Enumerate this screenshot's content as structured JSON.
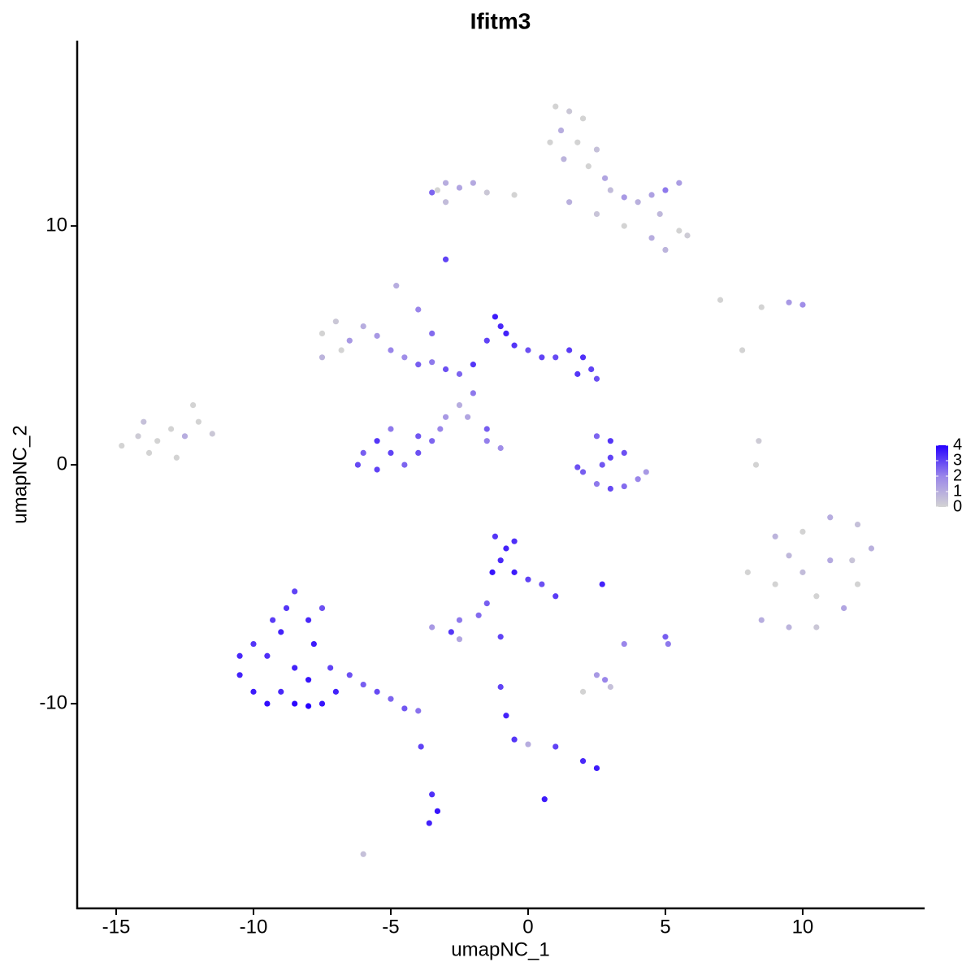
{
  "chart_data": {
    "type": "scatter",
    "title": "Ifitm3",
    "x_label": "umapNC_1",
    "y_label": "umapNC_2",
    "xlim": [
      -16.42,
      14.44
    ],
    "ylim": [
      -18.57,
      17.76
    ],
    "xticks": [
      -15,
      -10,
      -5,
      0,
      5,
      10
    ],
    "yticks": [
      -10,
      0,
      10
    ],
    "clim": [
      0,
      4
    ],
    "cticks": [
      0,
      1,
      2,
      3,
      4
    ],
    "colors": [
      "#d3d3d3",
      "#9a86ea",
      "#2600ff"
    ],
    "x": [
      1,
      1.5,
      2,
      1.2,
      1.8,
      2.5,
      0.8,
      1.3,
      2.2,
      2.8,
      3,
      3.5,
      4,
      4.5,
      5,
      5.5,
      4.8,
      5.5,
      5.8,
      4.5,
      5,
      3.5,
      2.5,
      1.5,
      -0.5,
      -1.5,
      -2.5,
      -3,
      -3.3,
      -3,
      -3.5,
      -2,
      -3,
      -1.2,
      -1,
      -0.8,
      -1.5,
      -0.5,
      0,
      0.5,
      1,
      1.5,
      2,
      2.3,
      2.5,
      1.8,
      -2,
      -2.5,
      -3,
      -3.5,
      -4,
      -4.5,
      -5,
      -5.5,
      -6,
      -7.5,
      -7,
      -7.5,
      -6.8,
      -6.5,
      -4.8,
      -4,
      -3.5,
      -2,
      -2.5,
      -3,
      -3.2,
      -3.5,
      -4,
      -5,
      -5.5,
      -6,
      -6.2,
      -5.5,
      -4.5,
      -4,
      -5,
      -1.5,
      -1,
      -1.5,
      -2.2,
      -14.8,
      -14.2,
      -13.5,
      -13,
      -12.5,
      -12,
      -11.5,
      -12.2,
      -13.8,
      -12.8,
      -14,
      2.5,
      3,
      3.5,
      2,
      2.5,
      3,
      3.5,
      4,
      4.3,
      3,
      2.7,
      1.8,
      9,
      10,
      11,
      12,
      12.5,
      12,
      11.5,
      10.5,
      9.5,
      8.5,
      9,
      10,
      11,
      10.5,
      8,
      9.5,
      11.8,
      8.3,
      8.4,
      7.8,
      7,
      8.5,
      9.5,
      10,
      -10.5,
      -10,
      -9.5,
      -9,
      -8.5,
      -8,
      -7.5,
      -9.5,
      -9,
      -8.8,
      -8.5,
      -8,
      -7.5,
      -7.8,
      -8.5,
      -10,
      -9.3,
      -7.2,
      -6.5,
      -6,
      -5.5,
      -5,
      -4.5,
      -4,
      -10.5,
      -8,
      -7,
      -1.2,
      -0.8,
      -1,
      -0.5,
      0,
      0.5,
      1,
      -1.3,
      -0.5,
      -1.5,
      -1.8,
      -2.5,
      -3.5,
      -2.8,
      -2.5,
      -1,
      2.7,
      3.5,
      5,
      5.1,
      2.5,
      2,
      3,
      2.8,
      -1,
      -0.8,
      -0.5,
      0,
      1,
      2,
      2.5,
      -3.9,
      -3.5,
      -3.3,
      -3.6,
      0.6,
      -6
    ],
    "y": [
      15,
      14.8,
      14.5,
      14,
      13.5,
      13.2,
      13.5,
      12.8,
      12.5,
      12,
      11.5,
      11.2,
      11,
      11.3,
      11.5,
      11.8,
      10.5,
      9.8,
      9.6,
      9.5,
      9,
      10,
      10.5,
      11,
      11.3,
      11.4,
      11.6,
      11.8,
      11.5,
      11,
      11.4,
      11.8,
      8.6,
      6.2,
      5.8,
      5.5,
      5.2,
      5,
      4.8,
      4.5,
      4.5,
      4.8,
      4.5,
      4,
      3.6,
      3.8,
      4.2,
      3.8,
      4,
      4.3,
      4.2,
      4.5,
      4.8,
      5.4,
      5.8,
      5.5,
      6,
      4.5,
      4.8,
      5.2,
      7.5,
      6.5,
      5.5,
      3,
      2.5,
      2,
      1.5,
      1,
      0.5,
      0.5,
      1,
      0.5,
      0,
      -0.2,
      0,
      1.2,
      1.5,
      1,
      0.7,
      1.5,
      2,
      0.8,
      1.2,
      1,
      1.5,
      1.2,
      1.8,
      1.3,
      2.5,
      0.5,
      0.3,
      1.8,
      1.2,
      1,
      0.5,
      -0.3,
      -0.8,
      -1,
      -0.9,
      -0.6,
      -0.3,
      0.3,
      0,
      -0.1,
      -3,
      -2.8,
      -2.2,
      -2.5,
      -3.5,
      -5,
      -6,
      -6.8,
      -6.8,
      -6.5,
      -5,
      -4.5,
      -4,
      -5.5,
      -4.5,
      -3.8,
      -4,
      0,
      1,
      4.8,
      6.9,
      6.6,
      6.8,
      6.7,
      -8.8,
      -9.5,
      -10,
      -9.5,
      -10,
      -10.1,
      -10,
      -8,
      -7,
      -6,
      -5.3,
      -6.5,
      -6,
      -7.5,
      -8.5,
      -7.5,
      -6.5,
      -8.5,
      -8.8,
      -9.2,
      -9.5,
      -9.8,
      -10.2,
      -10.3,
      -8,
      -9,
      -9.5,
      -3,
      -3.5,
      -4,
      -4.5,
      -4.8,
      -5,
      -5.5,
      -4.5,
      -3.2,
      -5.8,
      -6.3,
      -6.5,
      -6.8,
      -7,
      -7.3,
      -7.2,
      -5,
      -7.5,
      -7.2,
      -7.5,
      -8.8,
      -9.5,
      -9.3,
      -9,
      -9.3,
      -10.5,
      -11.5,
      -11.7,
      -11.8,
      -12.4,
      -12.7,
      -11.8,
      -13.8,
      -14.5,
      -15,
      -14,
      -16.3
    ],
    "values": [
      0,
      0.3,
      0,
      1,
      0,
      0.5,
      0,
      0.8,
      0,
      1.2,
      0.6,
      1.5,
      0.9,
      1.3,
      2.2,
      1.4,
      0.7,
      0,
      0.2,
      1,
      0.8,
      0,
      0.4,
      0.9,
      0,
      0.3,
      1.2,
      1,
      0,
      0.6,
      2.5,
      1.1,
      3,
      3.6,
      3.4,
      3.5,
      3,
      3.2,
      2.8,
      3,
      2.9,
      3.1,
      3.3,
      3,
      2.8,
      3.2,
      3.2,
      2.5,
      2.8,
      2.2,
      2.6,
      1.8,
      2,
      1.5,
      1,
      0,
      0.3,
      0.8,
      0,
      1.5,
      1,
      2,
      2.4,
      2.2,
      1,
      1.5,
      2,
      2.5,
      2.8,
      3,
      3.2,
      2.6,
      2.9,
      3,
      2.5,
      2.7,
      2.2,
      2.1,
      1.8,
      2.6,
      1.2,
      0,
      0.2,
      0,
      0,
      1,
      0,
      0.3,
      0,
      0,
      0,
      0.5,
      2.5,
      3.2,
      2.8,
      2.6,
      2.2,
      2.9,
      2.4,
      2,
      1.5,
      3,
      2.7,
      2.8,
      0.8,
      0,
      1,
      0.5,
      0.9,
      0,
      1.2,
      0.3,
      0.8,
      1,
      0,
      0.6,
      1.1,
      0,
      0,
      0.7,
      0.4,
      0,
      0.2,
      0,
      0,
      0,
      1.5,
      1.8,
      3.5,
      3.6,
      3.8,
      3.4,
      3.9,
      4,
      3.7,
      3.3,
      3.5,
      3.2,
      3,
      3.4,
      2.8,
      3.6,
      3.5,
      3.2,
      3.1,
      3,
      2.8,
      2.6,
      2.9,
      2.5,
      2.7,
      2.3,
      3.4,
      3.7,
      3.5,
      3.2,
      3.5,
      3.4,
      3.6,
      3,
      2.8,
      3.1,
      3.7,
      3.3,
      2.6,
      2.4,
      2.2,
      1.5,
      3.2,
      1.2,
      3,
      3.5,
      2,
      2.6,
      2.2,
      1.5,
      0,
      0.5,
      2,
      3,
      3.5,
      3.2,
      1,
      3,
      3.4,
      3.6,
      3,
      3.3,
      3.7,
      3.5,
      3.6,
      0.5
    ]
  }
}
